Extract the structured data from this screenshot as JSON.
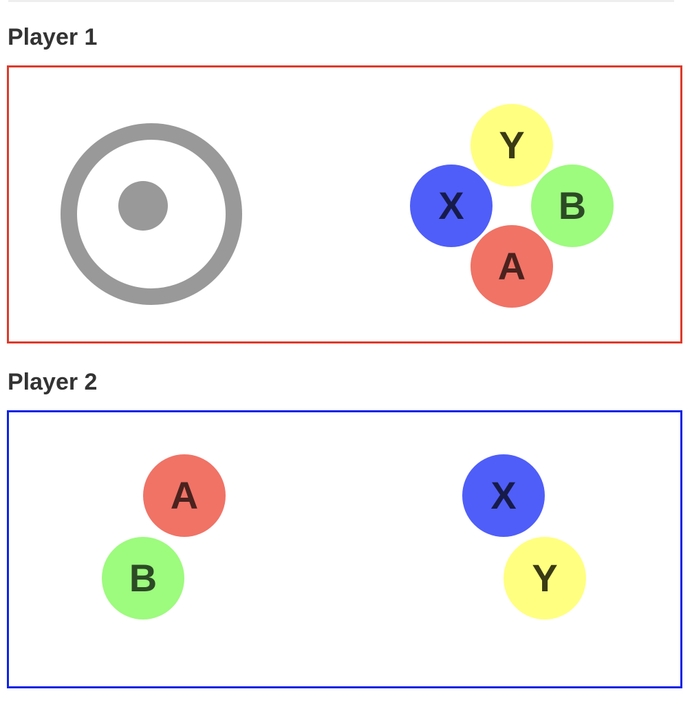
{
  "players": [
    {
      "title": "Player 1",
      "frame_color": "#dd3a2a",
      "joystick": {
        "ring_color": "#999999",
        "knob_color": "#999999"
      },
      "buttons": [
        {
          "label": "Y",
          "color": "#ffff80",
          "text_color": "#3a3a14"
        },
        {
          "label": "X",
          "color": "#4f5ef8",
          "text_color": "#171b4a"
        },
        {
          "label": "B",
          "color": "#9dfb7e",
          "text_color": "#2c4a25"
        },
        {
          "label": "A",
          "color": "#f07366",
          "text_color": "#4a221e"
        }
      ]
    },
    {
      "title": "Player 2",
      "frame_color": "#0c23e6",
      "buttons": [
        {
          "label": "A",
          "color": "#f07366",
          "text_color": "#4a221e"
        },
        {
          "label": "B",
          "color": "#9dfb7e",
          "text_color": "#2c4a25"
        },
        {
          "label": "X",
          "color": "#4f5ef8",
          "text_color": "#171b4a"
        },
        {
          "label": "Y",
          "color": "#ffff80",
          "text_color": "#3a3a14"
        }
      ]
    }
  ]
}
